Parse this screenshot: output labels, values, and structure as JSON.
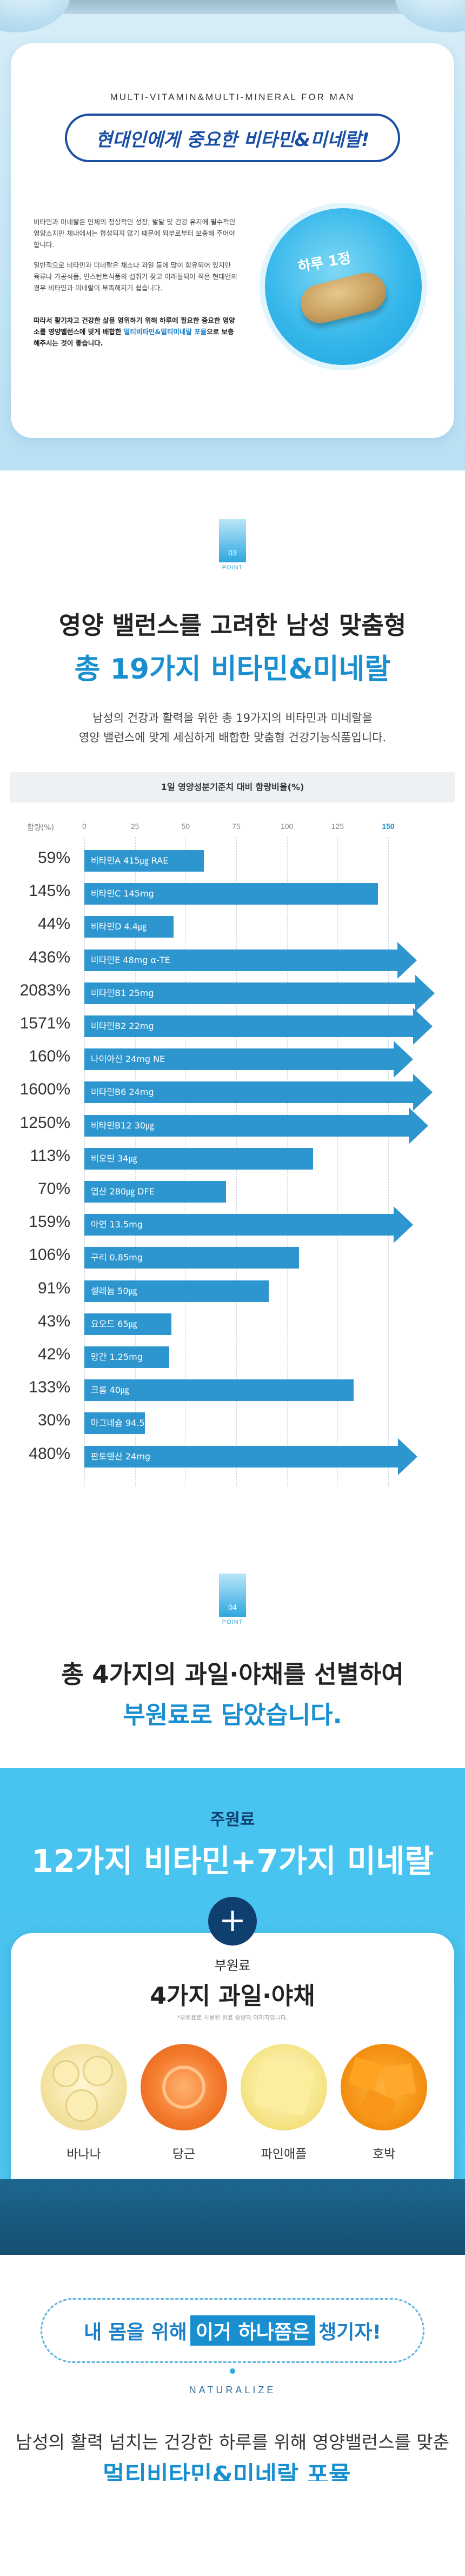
{
  "intro": {
    "tagline": "MULTI-VITAMIN&MULTI-MINERAL FOR MAN",
    "title": "현대인에게 중요한 비타민&미네랄!",
    "para1": "비타민과 미네랄은 인체의 정상적인 성장, 발달 및 건강 유지에 필수적인 영양소지만 체내에서는 합성되지 않기 때문에 외부로부터 보충해 주어야 합니다.",
    "para2": "일반적으로 비타민과 미네랄은 채소나 과일 등에 많이 함유되어 있지만 육류나 가공식품, 인스턴트식품의 섭취가 잦고 이래들되어 적은 현대인의 경우 비타민과 미네랄이 부족해지기 쉽습니다.",
    "para3_a": "따라서 활기차고 건강한 삶을 영위하기 위해 하루에 필요한 중요한 영양소를 영양밸런스에 맞게 배합한",
    "para3_hl": "멀티비타민&멀티미네랄 포뮬",
    "para3_b": "으로 보충해주시는 것이 좋습니다.",
    "dose": "하루 1정"
  },
  "point3": {
    "num": "03",
    "label": "POINT",
    "headline": "영양 밸런스를 고려한 남성 맞춤형",
    "headline_blue": "총 19가지 비타민&미네랄",
    "desc1": "남성의 건강과 활력을 위한 총 19가지의 비타민과 미네랄을",
    "desc2": "영양 밸런스에 맞게 세심하게 배합한 맞춤형 건강기능식품입니다."
  },
  "chart_data": {
    "type": "bar",
    "title": "1일 영양성분기준치 대비 함량비율(%)",
    "xlabel": "함량(%)",
    "xlim": [
      0,
      150
    ],
    "ticks": [
      "0",
      "25",
      "50",
      "75",
      "100",
      "125",
      "150"
    ],
    "rows": [
      {
        "pct": "59%",
        "label": "비타민A  415㎍ RAE",
        "value": 59
      },
      {
        "pct": "145%",
        "label": "비타민C  145mg",
        "value": 145
      },
      {
        "pct": "44%",
        "label": "비타민D  4.4㎍",
        "value": 44
      },
      {
        "pct": "436%",
        "label": "비타민E  48mg α-TE",
        "value": 436
      },
      {
        "pct": "2083%",
        "label": "비타민B1  25mg",
        "value": 2083
      },
      {
        "pct": "1571%",
        "label": "비타민B2  22mg",
        "value": 1571
      },
      {
        "pct": "160%",
        "label": "나이아신  24mg NE",
        "value": 160
      },
      {
        "pct": "1600%",
        "label": "비타민B6  24mg",
        "value": 1600
      },
      {
        "pct": "1250%",
        "label": "비타민B12  30㎍",
        "value": 1250
      },
      {
        "pct": "113%",
        "label": "비오틴  34㎍",
        "value": 113
      },
      {
        "pct": "70%",
        "label": "엽산  280㎍ DFE",
        "value": 70
      },
      {
        "pct": "159%",
        "label": "아연  13.5mg",
        "value": 159
      },
      {
        "pct": "106%",
        "label": "구리  0.85mg",
        "value": 106
      },
      {
        "pct": "91%",
        "label": "셀레늄  50㎍",
        "value": 91
      },
      {
        "pct": "43%",
        "label": "요오드  65㎍",
        "value": 43
      },
      {
        "pct": "42%",
        "label": "망간  1.25mg",
        "value": 42
      },
      {
        "pct": "133%",
        "label": "크롬  40㎍",
        "value": 133
      },
      {
        "pct": "30%",
        "label": "마그네슘  94.5mg",
        "value": 30
      },
      {
        "pct": "480%",
        "label": "판토텐산  24mg",
        "value": 480
      }
    ]
  },
  "point4": {
    "num": "04",
    "label": "POINT",
    "headline": "총 4가지의 과일·야채를 선별하여",
    "headline_blue": "부원료로 담았습니다.",
    "main_label": "주원료",
    "main_title": "12가지 비타민+7가지 미네랄",
    "plus": "+",
    "sub_label": "부원료",
    "sub_title": "4가지 과일·야채",
    "note": "*부원료로 사용된 원료 중량의 이미지입니다.",
    "fruits": [
      "바나나",
      "당근",
      "파인애플",
      "호박"
    ]
  },
  "natural": {
    "box_a": "내 몸을 위해",
    "box_hl": "이거 하나쯤은",
    "box_b": "챙기자!",
    "word": "NATURALIZE",
    "bottom": "남성의 활력 넘치는 건강한 하루를 위해 영양밸런스를 맞춘",
    "bottom_blue": "멀티비타민&미네랄 포뮬"
  }
}
